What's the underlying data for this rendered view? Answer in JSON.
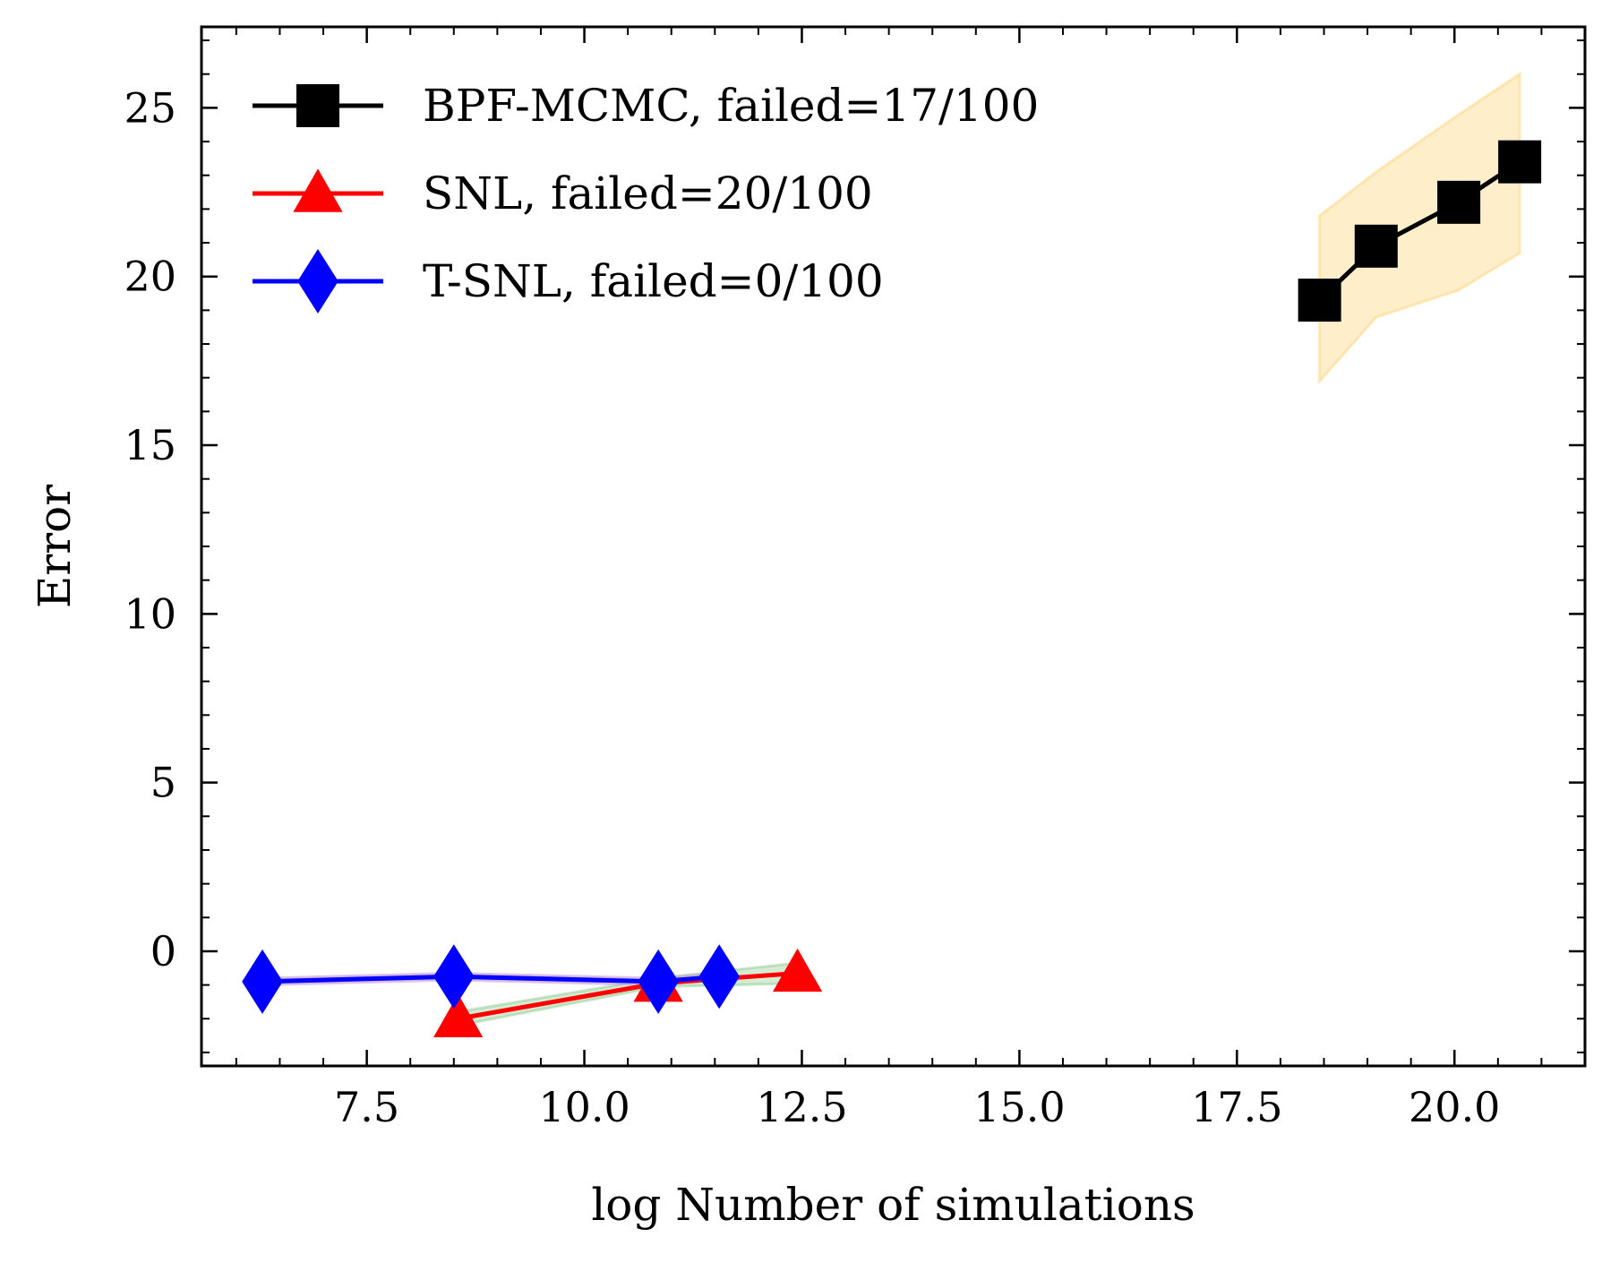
{
  "chart_data": {
    "type": "line",
    "title": "",
    "xlabel": "log Number of simulations",
    "ylabel": "Error",
    "xlim": [
      5.6,
      21.5
    ],
    "ylim": [
      -3.4,
      27.4
    ],
    "xticks": [
      7.5,
      10.0,
      12.5,
      15.0,
      17.5,
      20.0
    ],
    "xtick_labels": [
      "7.5",
      "10.0",
      "12.5",
      "15.0",
      "17.5",
      "20.0"
    ],
    "yticks": [
      0,
      5,
      10,
      15,
      20,
      25
    ],
    "ytick_labels": [
      "0",
      "5",
      "10",
      "15",
      "20",
      "25"
    ],
    "grid": false,
    "legend_position": "top-left",
    "series": [
      {
        "name": "BPF-MCMC, failed=17/100",
        "color": "#000000",
        "marker": "square",
        "band_color": "#fdd98a",
        "x": [
          18.45,
          19.1,
          20.05,
          20.75
        ],
        "y": [
          19.3,
          20.9,
          22.2,
          23.4
        ],
        "lower": [
          16.9,
          18.8,
          19.6,
          20.7
        ],
        "upper": [
          21.8,
          23.1,
          24.8,
          26.0
        ]
      },
      {
        "name": "SNL, failed=20/100",
        "color": "#ff0000",
        "marker": "triangle",
        "band_color": "#9fd3a0",
        "x": [
          8.55,
          10.85,
          12.45
        ],
        "y": [
          -2.0,
          -0.95,
          -0.65
        ],
        "lower": [
          -2.2,
          -1.05,
          -0.95
        ],
        "upper": [
          -1.8,
          -0.8,
          -0.35
        ]
      },
      {
        "name": "T-SNL, failed=0/100",
        "color": "#0000ff",
        "marker": "diamond",
        "band_color": "#c8a0d8",
        "x": [
          6.3,
          8.5,
          10.85,
          11.55
        ],
        "y": [
          -0.9,
          -0.75,
          -0.9,
          -0.75
        ],
        "lower": [
          -1.0,
          -0.85,
          -1.0,
          -0.85
        ],
        "upper": [
          -0.8,
          -0.65,
          -0.8,
          -0.65
        ]
      }
    ]
  }
}
